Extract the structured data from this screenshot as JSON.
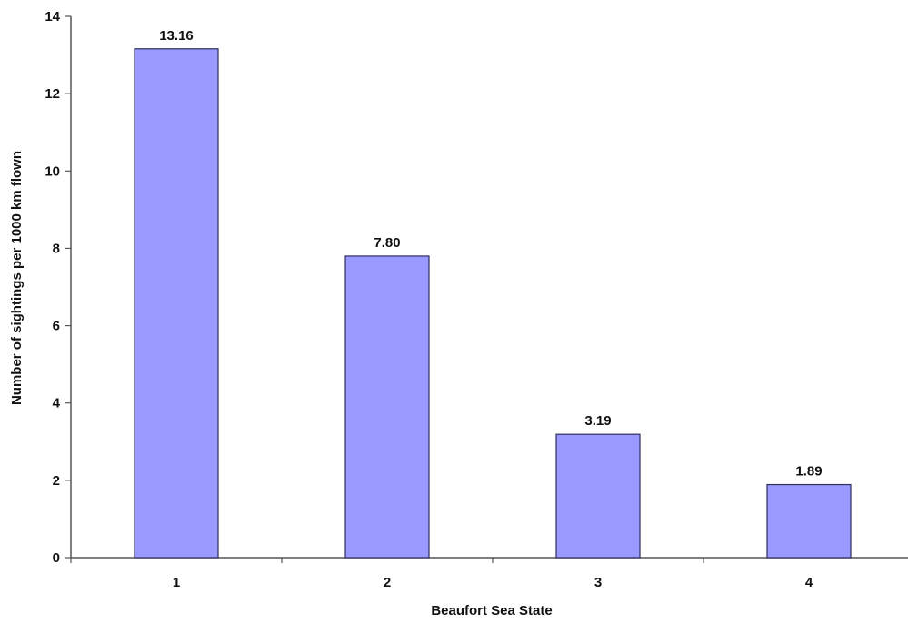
{
  "chart_data": {
    "type": "bar",
    "title": "",
    "xlabel": "Beaufort Sea State",
    "ylabel": "Number of sightings per 1000 km flown",
    "categories": [
      "1",
      "2",
      "3",
      "4"
    ],
    "values": [
      13.16,
      7.8,
      3.19,
      1.89
    ],
    "value_labels": [
      "13.16",
      "7.80",
      "3.19",
      "1.89"
    ],
    "ylim": [
      0,
      14
    ],
    "yticks": [
      0,
      2,
      4,
      6,
      8,
      10,
      12,
      14
    ],
    "grid": false,
    "legend": "none",
    "bar_color": "#9999ff",
    "bar_edge_color": "#2e2e5a"
  }
}
